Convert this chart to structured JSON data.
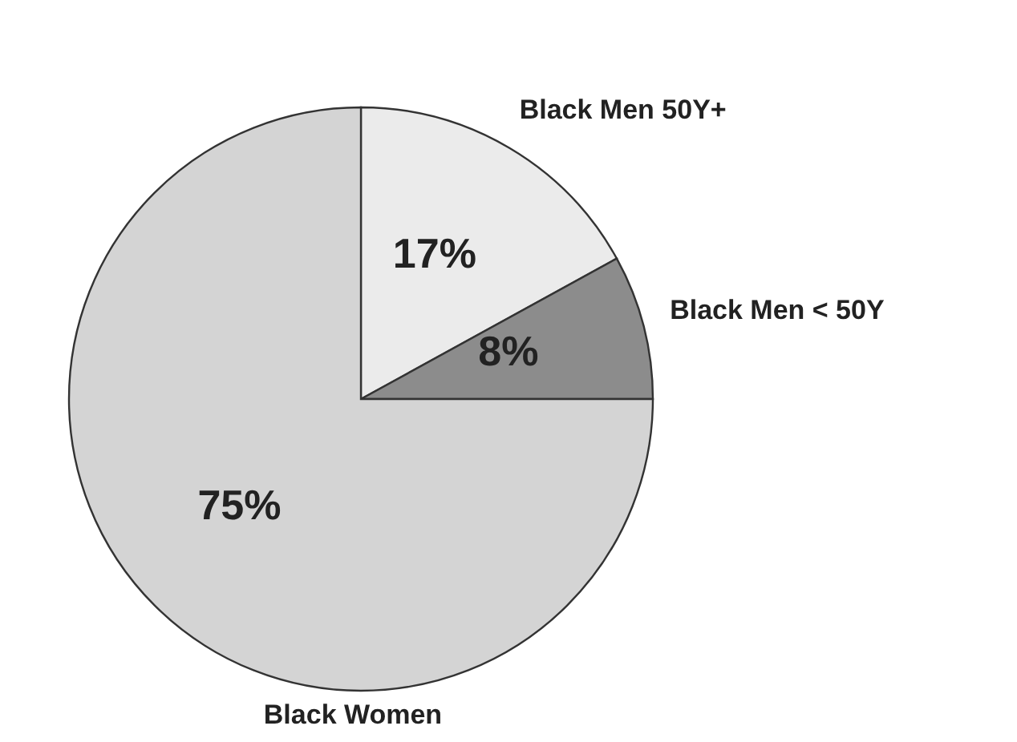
{
  "chart_data": {
    "type": "pie",
    "categories": [
      "Black Men 50Y+",
      "Black Men < 50Y",
      "Black Women"
    ],
    "values": [
      17,
      8,
      75
    ],
    "colors": [
      "#ebebeb",
      "#8c8c8c",
      "#d4d4d4"
    ],
    "value_labels": [
      "17%",
      "8%",
      "75%"
    ],
    "legend": false
  }
}
